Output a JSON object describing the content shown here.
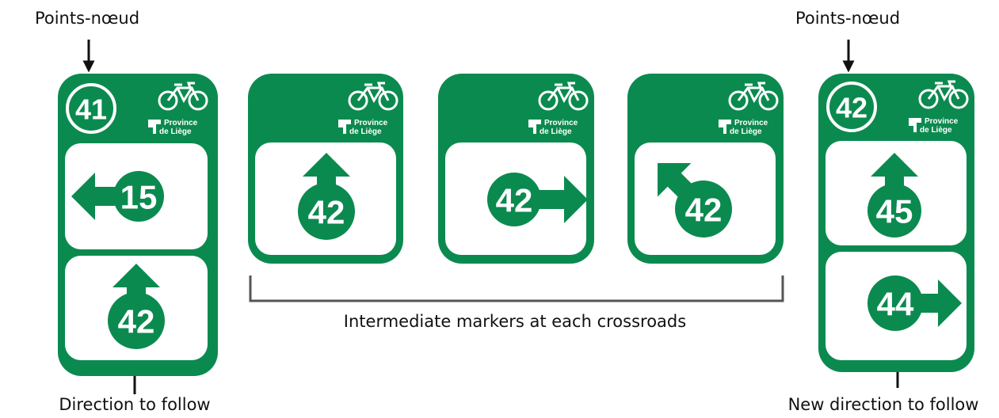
{
  "labels": {
    "node_left": "Points-nœud",
    "direction_left": "Direction to follow",
    "intermediate": "Intermediate markers at each crossroads",
    "node_right": "Points-nœud",
    "direction_right": "New direction to follow"
  },
  "signs": [
    {
      "node": 41,
      "logo": [
        "Province",
        "de Liège"
      ],
      "panels": [
        15,
        42
      ]
    },
    {
      "logo": [
        "Province",
        "de Liège"
      ],
      "panels": [
        42
      ]
    },
    {
      "logo": [
        "Province",
        "de Liège"
      ],
      "panels": [
        42
      ]
    },
    {
      "logo": [
        "Province",
        "de Liège"
      ],
      "panels": [
        42
      ]
    },
    {
      "node": 42,
      "logo": [
        "Province",
        "de Liège"
      ],
      "panels": [
        45,
        44
      ]
    }
  ]
}
